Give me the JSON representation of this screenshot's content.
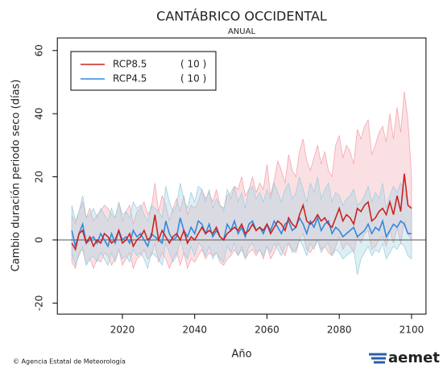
{
  "chart_data": {
    "type": "line",
    "title": "CANTÁBRICO OCCIDENTAL",
    "subtitle": "ANUAL",
    "x_label": "Año",
    "y_label": "Cambio duración periodo seco (días)",
    "xlim": [
      2002,
      2104
    ],
    "xticks": [
      2020,
      2040,
      2060,
      2080,
      2100
    ],
    "ylim": [
      -23.5,
      64
    ],
    "yticks": [
      -20,
      0,
      20,
      40,
      60
    ],
    "legend": "upper-left",
    "x": [
      2006,
      2007,
      2008,
      2009,
      2010,
      2011,
      2012,
      2013,
      2014,
      2015,
      2016,
      2017,
      2018,
      2019,
      2020,
      2021,
      2022,
      2023,
      2024,
      2025,
      2026,
      2027,
      2028,
      2029,
      2030,
      2031,
      2032,
      2033,
      2034,
      2035,
      2036,
      2037,
      2038,
      2039,
      2040,
      2041,
      2042,
      2043,
      2044,
      2045,
      2046,
      2047,
      2048,
      2049,
      2050,
      2051,
      2052,
      2053,
      2054,
      2055,
      2056,
      2057,
      2058,
      2059,
      2060,
      2061,
      2062,
      2063,
      2064,
      2065,
      2066,
      2067,
      2068,
      2069,
      2070,
      2071,
      2072,
      2073,
      2074,
      2075,
      2076,
      2077,
      2078,
      2079,
      2080,
      2081,
      2082,
      2083,
      2084,
      2085,
      2086,
      2087,
      2088,
      2089,
      2090,
      2091,
      2092,
      2093,
      2094,
      2095,
      2096,
      2097,
      2098,
      2099,
      2100
    ],
    "series": [
      {
        "name": "RCP8.5",
        "members": "( 10 )",
        "color": "#cc2222",
        "band_color": "#f4a6b0",
        "values": [
          -1,
          -3,
          2,
          3,
          -1,
          1,
          -2,
          0,
          -1,
          2,
          1,
          -1,
          0,
          3,
          -1,
          0,
          2,
          -2,
          0,
          1,
          3,
          0,
          1,
          8,
          0,
          3,
          1,
          -1,
          1,
          2,
          0,
          3,
          -1,
          1,
          0,
          2,
          4,
          2,
          3,
          2,
          4,
          1,
          0,
          2,
          3,
          4,
          3,
          5,
          2,
          3,
          5,
          3,
          4,
          3,
          5,
          2,
          4,
          6,
          5,
          3,
          7,
          5,
          4,
          8,
          11,
          6,
          5,
          6,
          8,
          6,
          7,
          5,
          4,
          7,
          10,
          6,
          8,
          7,
          5,
          10,
          9,
          11,
          12,
          6,
          7,
          9,
          10,
          8,
          12,
          8,
          14,
          9,
          21,
          11,
          10
        ],
        "upper": [
          8,
          5,
          9,
          12,
          7,
          10,
          6,
          8,
          9,
          11,
          10,
          8,
          7,
          12,
          6,
          9,
          11,
          5,
          9,
          10,
          12,
          8,
          10,
          18,
          9,
          14,
          11,
          6,
          10,
          13,
          9,
          14,
          8,
          11,
          10,
          12,
          16,
          13,
          15,
          12,
          16,
          11,
          10,
          14,
          15,
          17,
          16,
          20,
          14,
          16,
          20,
          15,
          18,
          16,
          24,
          14,
          19,
          25,
          22,
          18,
          27,
          22,
          20,
          28,
          32,
          25,
          22,
          26,
          30,
          24,
          28,
          22,
          20,
          30,
          33,
          26,
          30,
          28,
          24,
          35,
          32,
          36,
          38,
          27,
          30,
          34,
          36,
          31,
          40,
          32,
          42,
          34,
          47,
          38,
          20
        ],
        "lower": [
          -7,
          -9,
          -4,
          -3,
          -8,
          -6,
          -9,
          -6,
          -7,
          -4,
          -5,
          -8,
          -6,
          -3,
          -8,
          -6,
          -4,
          -9,
          -6,
          -5,
          -3,
          -6,
          -5,
          -1,
          -7,
          -4,
          -6,
          -9,
          -6,
          -4,
          -8,
          -4,
          -9,
          -6,
          -7,
          -5,
          -3,
          -6,
          -4,
          -5,
          -4,
          -7,
          -8,
          -6,
          -5,
          -3,
          -5,
          -2,
          -6,
          -4,
          -3,
          -5,
          -3,
          -6,
          -2,
          -6,
          -4,
          -1,
          -3,
          -5,
          -1,
          -3,
          -4,
          0,
          2,
          -3,
          -4,
          -2,
          0,
          -3,
          -2,
          -4,
          -5,
          -2,
          1,
          -3,
          -1,
          -2,
          -4,
          1,
          -1,
          2,
          3,
          -3,
          -2,
          0,
          1,
          -2,
          3,
          -1,
          4,
          -1,
          6,
          2,
          0
        ]
      },
      {
        "name": "RCP4.5",
        "members": "( 10 )",
        "color": "#3388dd",
        "band_color": "#9fd0e0",
        "values": [
          3,
          -2,
          2,
          5,
          -1,
          0,
          1,
          -1,
          2,
          0,
          -2,
          2,
          -1,
          3,
          0,
          1,
          -1,
          3,
          1,
          2,
          0,
          -2,
          2,
          1,
          0,
          -1,
          6,
          2,
          0,
          1,
          7,
          3,
          1,
          4,
          2,
          6,
          5,
          2,
          5,
          1,
          3,
          1,
          0,
          5,
          3,
          6,
          2,
          4,
          1,
          5,
          6,
          3,
          4,
          2,
          5,
          3,
          6,
          4,
          2,
          5,
          6,
          3,
          4,
          7,
          5,
          2,
          6,
          4,
          7,
          3,
          5,
          6,
          2,
          4,
          3,
          1,
          2,
          3,
          4,
          1,
          2,
          3,
          5,
          2,
          4,
          3,
          6,
          1,
          3,
          5,
          4,
          6,
          5,
          2,
          2
        ],
        "upper": [
          11,
          6,
          9,
          14,
          7,
          8,
          10,
          7,
          10,
          8,
          6,
          10,
          7,
          12,
          8,
          9,
          7,
          12,
          10,
          11,
          8,
          6,
          11,
          10,
          9,
          7,
          17,
          12,
          9,
          11,
          18,
          13,
          10,
          15,
          12,
          17,
          16,
          12,
          16,
          10,
          13,
          11,
          9,
          16,
          13,
          17,
          12,
          15,
          10,
          16,
          17,
          13,
          15,
          12,
          16,
          13,
          18,
          15,
          12,
          16,
          18,
          13,
          15,
          20,
          16,
          12,
          18,
          15,
          20,
          13,
          16,
          18,
          12,
          15,
          14,
          11,
          13,
          14,
          16,
          11,
          12,
          14,
          17,
          12,
          15,
          13,
          18,
          10,
          14,
          17,
          15,
          18,
          16,
          11,
          10
        ],
        "lower": [
          -4,
          -8,
          -5,
          -2,
          -8,
          -6,
          -5,
          -7,
          -4,
          -6,
          -8,
          -4,
          -7,
          -3,
          -6,
          -5,
          -7,
          -3,
          -5,
          -4,
          -6,
          -9,
          -4,
          -5,
          -6,
          -8,
          -1,
          -4,
          -7,
          -5,
          0,
          -4,
          -6,
          -2,
          -5,
          -1,
          -2,
          -5,
          -2,
          -6,
          -4,
          -6,
          -7,
          -2,
          -4,
          -1,
          -5,
          -3,
          -6,
          -2,
          -1,
          -4,
          -3,
          -5,
          -2,
          -4,
          -1,
          -3,
          -5,
          -2,
          -1,
          -4,
          -3,
          0,
          -2,
          -5,
          -1,
          -3,
          0,
          -4,
          -2,
          -1,
          -5,
          -3,
          -4,
          -6,
          -5,
          -4,
          -3,
          -11,
          -6,
          -4,
          -2,
          -5,
          -3,
          -4,
          -1,
          -6,
          -4,
          -2,
          -3,
          -1,
          -2,
          -5,
          -6
        ]
      }
    ]
  },
  "footer": {
    "credit": "© Agencia Estatal de Meteorología",
    "logo": "aemet"
  }
}
